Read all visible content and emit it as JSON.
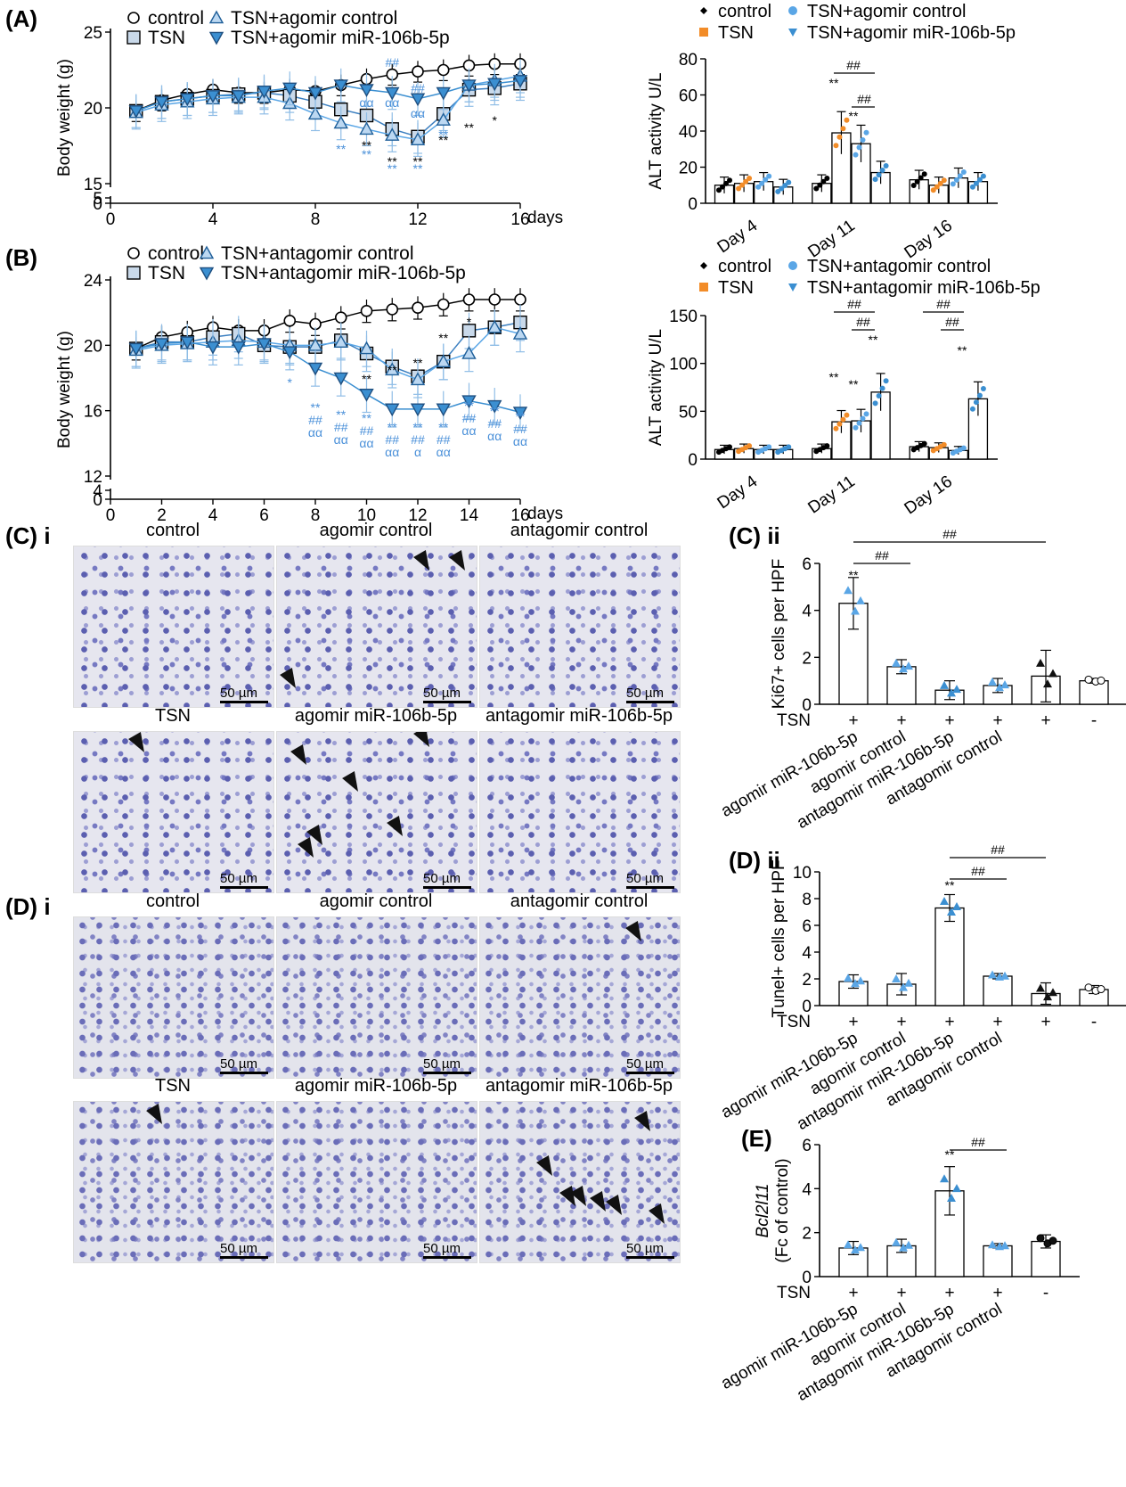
{
  "panels": {
    "A": "(A)",
    "B": "(B)",
    "Ci": "(C) i",
    "Cii": "(C) ii",
    "Di": "(D) i",
    "Dii": "(D) ii",
    "E": "(E)"
  },
  "colors": {
    "control": "#000000",
    "tsn": "#f28c28",
    "agomir_control": "#5aa6e6",
    "mir": "#3b8fd1",
    "square_fill": "#c9d9ea",
    "tri_fill": "#3b8fd1"
  },
  "micro_titles": {
    "C_top": [
      "control",
      "agomir control",
      "antagomir control"
    ],
    "C_bottom": [
      "TSN",
      "agomir miR-106b-5p",
      "antagomir miR-106b-5p"
    ],
    "D_top": [
      "control",
      "agomir control",
      "antagomir control"
    ],
    "D_bottom": [
      "TSN",
      "agomir miR-106b-5p",
      "antagomir miR-106b-5p"
    ],
    "scale": "50 µm"
  },
  "chart_data": [
    {
      "id": "A",
      "type": "line",
      "xlabel": "days",
      "ylabel": "Body weight (g)",
      "xticks": [
        0,
        4,
        8,
        12,
        16
      ],
      "yticks": [
        "0",
        "5",
        "15",
        "20",
        "25"
      ],
      "legend": [
        "control",
        "TSN",
        "TSN+agomir control",
        "TSN+agomir miR-106b-5p"
      ],
      "x": [
        1,
        2,
        3,
        4,
        5,
        6,
        7,
        8,
        9,
        10,
        11,
        12,
        13,
        14,
        15,
        16
      ],
      "series": [
        {
          "name": "control",
          "values": [
            19.8,
            20.5,
            20.9,
            21.2,
            21.0,
            21.0,
            21.2,
            21.1,
            21.5,
            21.9,
            22.2,
            22.4,
            22.5,
            22.8,
            22.9,
            22.9
          ]
        },
        {
          "name": "TSN",
          "values": [
            19.8,
            20.4,
            20.6,
            20.8,
            20.9,
            21.0,
            20.8,
            20.4,
            19.9,
            19.5,
            18.6,
            18.1,
            19.6,
            21.2,
            21.3,
            21.6
          ]
        },
        {
          "name": "TSN+agomir control",
          "values": [
            19.7,
            20.2,
            20.4,
            20.6,
            20.7,
            20.7,
            20.3,
            19.6,
            19.0,
            18.6,
            18.2,
            17.9,
            19.2,
            21.5,
            21.8,
            22.1
          ]
        },
        {
          "name": "TSN+agomir miR-106b-5p",
          "values": [
            19.8,
            20.4,
            20.6,
            20.8,
            20.8,
            21.1,
            21.3,
            21.0,
            21.5,
            21.2,
            21.0,
            20.6,
            21.0,
            21.5,
            21.6,
            21.8
          ]
        }
      ],
      "annotations": [
        "**",
        "**",
        "**",
        "**",
        "**",
        "##",
        "αα",
        "*"
      ]
    },
    {
      "id": "B",
      "type": "line",
      "xlabel": "days",
      "ylabel": "Body weight (g)",
      "xticks": [
        0,
        2,
        4,
        6,
        8,
        10,
        12,
        14,
        16
      ],
      "yticks": [
        "0",
        "4",
        "12",
        "16",
        "20",
        "24"
      ],
      "legend": [
        "control",
        "TSN",
        "TSN+antagomir control",
        "TSN+antagomir miR-106b-5p"
      ],
      "x": [
        1,
        2,
        3,
        4,
        5,
        6,
        7,
        8,
        9,
        10,
        11,
        12,
        13,
        14,
        15,
        16
      ],
      "series": [
        {
          "name": "control",
          "values": [
            19.8,
            20.5,
            20.8,
            21.1,
            20.9,
            20.9,
            21.5,
            21.3,
            21.7,
            22.1,
            22.2,
            22.3,
            22.5,
            22.8,
            22.8,
            22.8
          ]
        },
        {
          "name": "TSN",
          "values": [
            19.8,
            20.2,
            20.2,
            20.5,
            20.7,
            20.0,
            19.9,
            19.9,
            20.3,
            19.5,
            18.7,
            18.1,
            19.0,
            20.9,
            21.1,
            21.4
          ]
        },
        {
          "name": "TSN+antagomir control",
          "values": [
            19.7,
            20.0,
            20.1,
            20.2,
            20.3,
            20.2,
            20.0,
            20.0,
            20.2,
            19.8,
            18.5,
            17.9,
            19.0,
            19.5,
            21.1,
            20.7
          ]
        },
        {
          "name": "TSN+antagomir miR-106b-5p",
          "values": [
            19.8,
            20.1,
            20.2,
            19.9,
            19.9,
            20.1,
            19.6,
            18.6,
            18.0,
            17.0,
            16.1,
            16.1,
            16.1,
            16.6,
            16.3,
            15.9
          ]
        }
      ],
      "annotations": [
        "**",
        "##",
        "αα",
        "α"
      ]
    },
    {
      "id": "ALT_A",
      "type": "bar",
      "ylabel": "ALT activity U/L",
      "categories": [
        "Day 4",
        "Day 11",
        "Day 16"
      ],
      "yticks": [
        0,
        20,
        40,
        60,
        80
      ],
      "legend": [
        "control",
        "TSN",
        "TSN+agomir control",
        "TSN+agomir miR-106b-5p"
      ],
      "series": [
        {
          "name": "control",
          "values": [
            10,
            11,
            13
          ]
        },
        {
          "name": "TSN",
          "values": [
            11,
            39,
            10
          ]
        },
        {
          "name": "TSN+agomir control",
          "values": [
            12,
            33,
            14
          ]
        },
        {
          "name": "TSN+agomir miR-106b-5p",
          "values": [
            9,
            17,
            12
          ]
        }
      ],
      "annotations": [
        "**",
        "**",
        "##",
        "##"
      ]
    },
    {
      "id": "ALT_B",
      "type": "bar",
      "ylabel": "ALT activity U/L",
      "categories": [
        "Day 4",
        "Day 11",
        "Day 16"
      ],
      "yticks": [
        0,
        50,
        100,
        150
      ],
      "legend": [
        "control",
        "TSN",
        "TSN+antagomir control",
        "TSN+antagomir miR-106b-5p"
      ],
      "series": [
        {
          "name": "control",
          "values": [
            10,
            11,
            13
          ]
        },
        {
          "name": "TSN",
          "values": [
            11,
            39,
            12
          ]
        },
        {
          "name": "TSN+antagomir control",
          "values": [
            10,
            40,
            9
          ]
        },
        {
          "name": "TSN+antagomir miR-106b-5p",
          "values": [
            10,
            70,
            63
          ]
        }
      ],
      "annotations": [
        "**",
        "**",
        "**",
        "**",
        "##",
        "##",
        "##",
        "##"
      ]
    },
    {
      "id": "Cii",
      "type": "bar",
      "ylabel": "Ki67+ cells per HPF",
      "yticks": [
        0,
        2,
        4,
        6
      ],
      "categories": [
        "agomir miR-106b-5p",
        "agomir control",
        "antagomir miR-106b-5p",
        "antagomir control",
        "",
        ""
      ],
      "tsn": [
        "+",
        "+",
        "+",
        "+",
        "+",
        "-"
      ],
      "row_label": "TSN",
      "values": [
        4.3,
        1.6,
        0.6,
        0.8,
        1.2,
        1.0
      ],
      "errors": [
        1.1,
        0.3,
        0.4,
        0.3,
        1.1,
        0.1
      ],
      "annotations": [
        "**",
        "##",
        "##"
      ]
    },
    {
      "id": "Dii",
      "type": "bar",
      "ylabel": "Tunel+ cells per HPF",
      "yticks": [
        0,
        2,
        4,
        6,
        8,
        10
      ],
      "categories": [
        "agomir miR-106b-5p",
        "agomir control",
        "antagomir miR-106b-5p",
        "antagomir control",
        "",
        ""
      ],
      "tsn": [
        "+",
        "+",
        "+",
        "+",
        "+",
        "-"
      ],
      "row_label": "TSN",
      "values": [
        1.8,
        1.6,
        7.3,
        2.2,
        0.9,
        1.2
      ],
      "errors": [
        0.5,
        0.8,
        1.0,
        0.2,
        0.8,
        0.3
      ],
      "annotations": [
        "**",
        "##",
        "##"
      ]
    },
    {
      "id": "E",
      "type": "bar",
      "ylabel": "Bcl2l11",
      "ylabel2": "(Fc of control)",
      "yticks": [
        0,
        2,
        4,
        6
      ],
      "categories": [
        "agomir miR-106b-5p",
        "agomir control",
        "antagomir miR-106b-5p",
        "antagomir control",
        ""
      ],
      "tsn": [
        "+",
        "+",
        "+",
        "+",
        "-"
      ],
      "row_label": "TSN",
      "values": [
        1.3,
        1.4,
        3.9,
        1.4,
        1.6
      ],
      "errors": [
        0.3,
        0.3,
        1.1,
        0.1,
        0.3
      ],
      "annotations": [
        "**",
        "##"
      ]
    }
  ]
}
